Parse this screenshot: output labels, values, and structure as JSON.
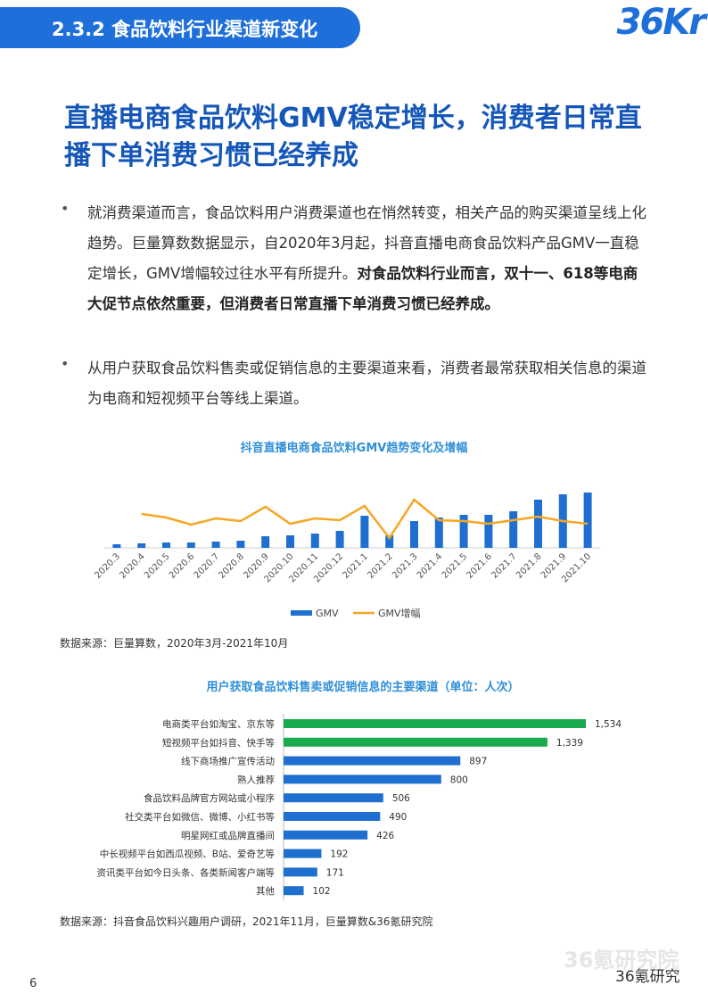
{
  "header": {
    "section": "2.3.2 食品饮料行业渠道新变化",
    "logo": "36Kr"
  },
  "title": "直播电商食品饮料GMV稳定增长，消费者日常直播下单消费习惯已经养成",
  "bullets": [
    {
      "text": "就消费渠道而言，食品饮料用户消费渠道也在悄然转变，相关产品的购买渠道呈线上化趋势。巨量算数数据显示，自2020年3月起，抖音直播电商食品饮料产品GMV一直稳定增长，GMV增幅较过往水平有所提升。",
      "bold": "对食品饮料行业而言，双十一、618等电商大促节点依然重要，但消费者日常直播下单消费习惯已经养成。"
    },
    {
      "text": "从用户获取食品饮料售卖或促销信息的主要渠道来看，消费者最常获取相关信息的渠道为电商和短视频平台等线上渠道。"
    }
  ],
  "chart_data": [
    {
      "type": "bar",
      "title": "抖音直播电商食品饮料GMV趋势变化及增幅",
      "categories": [
        "2020.3",
        "2020.4",
        "2020.5",
        "2020.6",
        "2020.7",
        "2020.8",
        "2020.9",
        "2020.10",
        "2020.11",
        "2020.12",
        "2021.1",
        "2021.2",
        "2021.3",
        "2021.4",
        "2021.5",
        "2021.6",
        "2021.7",
        "2021.8",
        "2021.9",
        "2021.10"
      ],
      "series": [
        {
          "name": "GMV",
          "type": "bar",
          "color": "#1e6fd0",
          "values": [
            4,
            5,
            6,
            6,
            7,
            8,
            13,
            14,
            16,
            19,
            36,
            14,
            30,
            34,
            37,
            37,
            41,
            54,
            60,
            62
          ]
        },
        {
          "name": "GMV增幅",
          "type": "line",
          "color": "#f5a623",
          "values": [
            null,
            38,
            34,
            26,
            33,
            30,
            46,
            27,
            33,
            31,
            47,
            11,
            54,
            31,
            30,
            27,
            31,
            35,
            30,
            27
          ]
        }
      ],
      "legend": "bottom",
      "source": "数据来源：巨量算数，2020年3月-2021年10月"
    },
    {
      "type": "hbar",
      "title": "用户获取食品饮料售卖或促销信息的主要渠道（单位：人次）",
      "categories": [
        "电商类平台如淘宝、京东等",
        "短视频平台如抖音、快手等",
        "线下商场推广宣传活动",
        "熟人推荐",
        "食品饮料品牌官方网站或小程序",
        "社交类平台如微信、微博、小红书等",
        "明星网红或品牌直播间",
        "中长视频平台如西瓜视频、B站、爱奇艺等",
        "资讯类平台如今日头条、各类新闻客户端等",
        "其他"
      ],
      "values": [
        1534,
        1339,
        897,
        800,
        506,
        490,
        426,
        192,
        171,
        102
      ],
      "value_labels": [
        "1,534",
        "1,339",
        "897",
        "800",
        "506",
        "490",
        "426",
        "192",
        "171",
        "102"
      ],
      "colors": [
        "#1aab4e",
        "#1aab4e",
        "#1e6fd0",
        "#1e6fd0",
        "#1e6fd0",
        "#1e6fd0",
        "#1e6fd0",
        "#1e6fd0",
        "#1e6fd0",
        "#1e6fd0"
      ],
      "source": "数据来源：抖音食品饮料兴趣用户调研，2021年11月，巨量算数&36氪研究院"
    }
  ],
  "footer": {
    "page": "6",
    "watermark": "36氪研究院",
    "account": "36氪研究"
  }
}
